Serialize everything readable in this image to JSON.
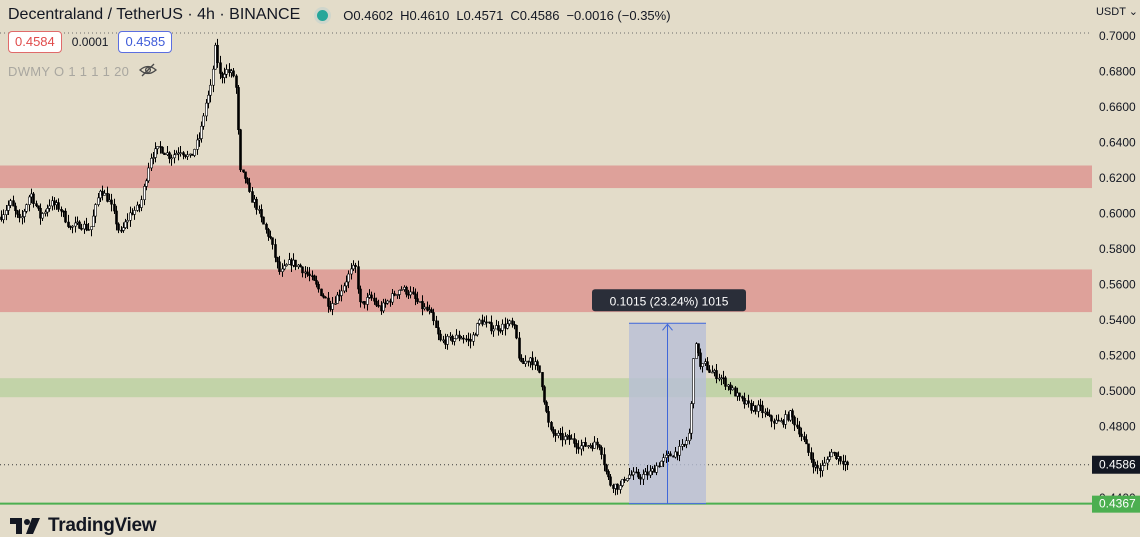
{
  "header": {
    "symbol": "Decentraland / TetherUS · 4h · BINANCE",
    "open": "O0.4602",
    "high": "H0.4610",
    "low": "L0.4571",
    "close": "C0.4586",
    "change": "−0.0016 (−0.35%)"
  },
  "quote": {
    "sell": "0.4584",
    "spread": "0.0001",
    "buy": "0.4585"
  },
  "indicator_label": "DWMY O 1 1 1 1 20",
  "currency": "USDT",
  "brand": "TradingView",
  "colors": {
    "background": "#e3dcc9",
    "resistance_zone": "#dea19a",
    "support_zone": "#c2d3a8",
    "support_line": "#4caf50",
    "measure_fill": "#b8bfd7",
    "measure_line": "#3f67d9",
    "candle": "#000000"
  },
  "chart_data": {
    "type": "candlestick",
    "title": "Decentraland / TetherUS · 4h · BINANCE",
    "y_axis": {
      "ticks": [
        "0.7000",
        "0.6800",
        "0.6600",
        "0.6400",
        "0.6200",
        "0.6000",
        "0.5800",
        "0.5600",
        "0.5400",
        "0.5200",
        "0.5000",
        "0.4800",
        "0.4600",
        "0.4400"
      ],
      "range": [
        0.432,
        0.701
      ]
    },
    "price_path": [
      [
        0,
        0.598
      ],
      [
        10,
        0.606
      ],
      [
        20,
        0.595
      ],
      [
        30,
        0.612
      ],
      [
        40,
        0.598
      ],
      [
        50,
        0.606
      ],
      [
        60,
        0.603
      ],
      [
        70,
        0.592
      ],
      [
        80,
        0.594
      ],
      [
        90,
        0.591
      ],
      [
        100,
        0.614
      ],
      [
        110,
        0.606
      ],
      [
        120,
        0.588
      ],
      [
        130,
        0.6
      ],
      [
        140,
        0.604
      ],
      [
        150,
        0.632
      ],
      [
        160,
        0.637
      ],
      [
        170,
        0.632
      ],
      [
        180,
        0.636
      ],
      [
        190,
        0.631
      ],
      [
        200,
        0.644
      ],
      [
        205,
        0.661
      ],
      [
        210,
        0.669
      ],
      [
        215,
        0.693
      ],
      [
        220,
        0.676
      ],
      [
        225,
        0.681
      ],
      [
        230,
        0.679
      ],
      [
        235,
        0.677
      ],
      [
        240,
        0.623
      ],
      [
        245,
        0.62
      ],
      [
        250,
        0.609
      ],
      [
        255,
        0.606
      ],
      [
        260,
        0.598
      ],
      [
        265,
        0.591
      ],
      [
        270,
        0.586
      ],
      [
        275,
        0.575
      ],
      [
        280,
        0.566
      ],
      [
        290,
        0.573
      ],
      [
        300,
        0.57
      ],
      [
        310,
        0.564
      ],
      [
        320,
        0.556
      ],
      [
        330,
        0.548
      ],
      [
        340,
        0.556
      ],
      [
        350,
        0.567
      ],
      [
        355,
        0.57
      ],
      [
        360,
        0.548
      ],
      [
        370,
        0.553
      ],
      [
        380,
        0.546
      ],
      [
        390,
        0.552
      ],
      [
        400,
        0.558
      ],
      [
        410,
        0.555
      ],
      [
        420,
        0.548
      ],
      [
        430,
        0.544
      ],
      [
        440,
        0.528
      ],
      [
        450,
        0.529
      ],
      [
        460,
        0.531
      ],
      [
        470,
        0.528
      ],
      [
        480,
        0.54
      ],
      [
        490,
        0.536
      ],
      [
        500,
        0.536
      ],
      [
        510,
        0.538
      ],
      [
        515,
        0.534
      ],
      [
        520,
        0.514
      ],
      [
        530,
        0.519
      ],
      [
        540,
        0.51
      ],
      [
        545,
        0.491
      ],
      [
        550,
        0.477
      ],
      [
        560,
        0.474
      ],
      [
        570,
        0.473
      ],
      [
        580,
        0.469
      ],
      [
        590,
        0.47
      ],
      [
        600,
        0.47
      ],
      [
        605,
        0.456
      ],
      [
        610,
        0.448
      ],
      [
        615,
        0.447
      ],
      [
        620,
        0.446
      ],
      [
        625,
        0.452
      ],
      [
        630,
        0.453
      ],
      [
        640,
        0.452
      ],
      [
        650,
        0.454
      ],
      [
        660,
        0.46
      ],
      [
        670,
        0.464
      ],
      [
        680,
        0.467
      ],
      [
        685,
        0.47
      ],
      [
        690,
        0.478
      ],
      [
        693,
        0.52
      ],
      [
        697,
        0.527
      ],
      [
        700,
        0.513
      ],
      [
        705,
        0.515
      ],
      [
        710,
        0.511
      ],
      [
        720,
        0.508
      ],
      [
        730,
        0.502
      ],
      [
        740,
        0.495
      ],
      [
        750,
        0.491
      ],
      [
        760,
        0.49
      ],
      [
        770,
        0.484
      ],
      [
        780,
        0.482
      ],
      [
        790,
        0.487
      ],
      [
        800,
        0.477
      ],
      [
        810,
        0.463
      ],
      [
        815,
        0.457
      ],
      [
        820,
        0.456
      ],
      [
        825,
        0.459
      ],
      [
        830,
        0.466
      ],
      [
        838,
        0.463
      ],
      [
        845,
        0.46
      ],
      [
        848,
        0.4586
      ]
    ],
    "resistance_zones": [
      [
        0.6143,
        0.627
      ],
      [
        0.5445,
        0.5685
      ]
    ],
    "support_zones": [
      [
        0.4966,
        0.5073
      ]
    ],
    "support_line": 0.4367,
    "measure": {
      "from": 0.4367,
      "to": 0.5382,
      "label": "0.1015 (23.24%) 1015"
    },
    "last_price": {
      "value": 0.4586,
      "label": "0.4586"
    },
    "support_label": "0.4367"
  }
}
